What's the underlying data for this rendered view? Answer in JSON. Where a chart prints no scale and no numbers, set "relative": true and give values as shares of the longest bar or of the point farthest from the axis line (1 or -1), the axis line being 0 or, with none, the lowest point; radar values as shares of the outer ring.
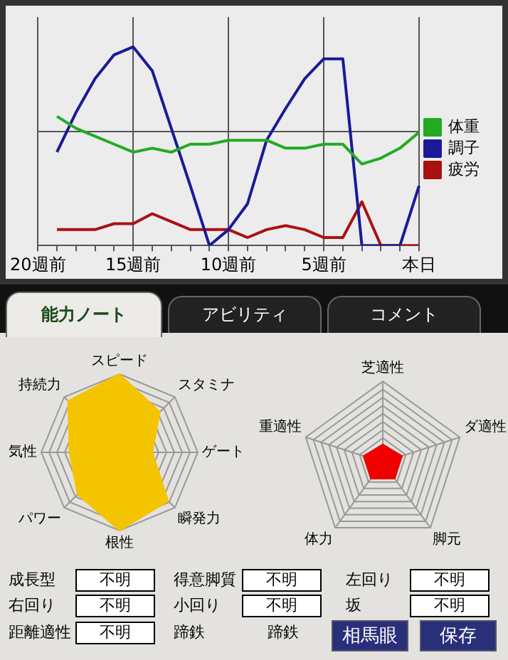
{
  "chart_data": [
    {
      "type": "line",
      "relative": true,
      "categories": [
        "20週前",
        null,
        null,
        null,
        null,
        "15週前",
        null,
        null,
        null,
        null,
        "10週前",
        null,
        null,
        null,
        null,
        "5週前",
        null,
        null,
        null,
        null,
        "本日"
      ],
      "series": [
        {
          "name": "体重",
          "color": "#22aa22",
          "values": [
            null,
            0.65,
            0.59,
            0.55,
            0.51,
            0.47,
            0.49,
            0.47,
            0.51,
            0.51,
            0.53,
            0.53,
            0.53,
            0.49,
            0.49,
            0.51,
            0.51,
            0.41,
            0.44,
            0.49,
            0.57
          ]
        },
        {
          "name": "調子",
          "color": "#1a1a99",
          "values": [
            null,
            0.47,
            0.67,
            0.84,
            0.96,
            1,
            0.88,
            0.59,
            0.3,
            0,
            0.08,
            0.21,
            0.53,
            0.69,
            0.84,
            0.94,
            0.94,
            0,
            0,
            0,
            0.3
          ]
        },
        {
          "name": "疲労",
          "color": "#aa1111",
          "values": [
            null,
            0.08,
            0.08,
            0.08,
            0.11,
            0.11,
            0.16,
            0.12,
            0.08,
            0.08,
            0.08,
            0.04,
            0.08,
            0.1,
            0.08,
            0.04,
            0.04,
            0.22,
            0,
            0,
            0
          ]
        }
      ],
      "grid": true,
      "legend": "right",
      "tick_labels": "x"
    },
    {
      "type": "radar",
      "relative": true,
      "categories": [
        "スピード",
        "スタミナ",
        "ゲート",
        "瞬発力",
        "根性",
        "パワー",
        "気性",
        "持続力"
      ],
      "series": [
        {
          "color": "#f5c400",
          "values": [
            1,
            0.73,
            0.42,
            0.88,
            1,
            0.76,
            0.64,
            0.93
          ]
        }
      ]
    },
    {
      "type": "radar",
      "relative": true,
      "categories": [
        "芝適性",
        "ダ適性",
        "脚元",
        "体力",
        "重適性"
      ],
      "series": [
        {
          "color": "#ee0000",
          "values": [
            0.22,
            0.25,
            0.25,
            0.25,
            0.25
          ]
        }
      ]
    },
    {
      "type": "other",
      "annotations": [
        "能力ノート",
        "アビリティ",
        "コメント",
        "成長型",
        "不明",
        "得意脚質",
        "不明",
        "左回り",
        "不明",
        "右回り",
        "不明",
        "小回り",
        "不明",
        "坂",
        "不明",
        "距離適性",
        "不明",
        "蹄鉄",
        "蹄鉄",
        "相馬眼",
        "保存"
      ]
    }
  ]
}
